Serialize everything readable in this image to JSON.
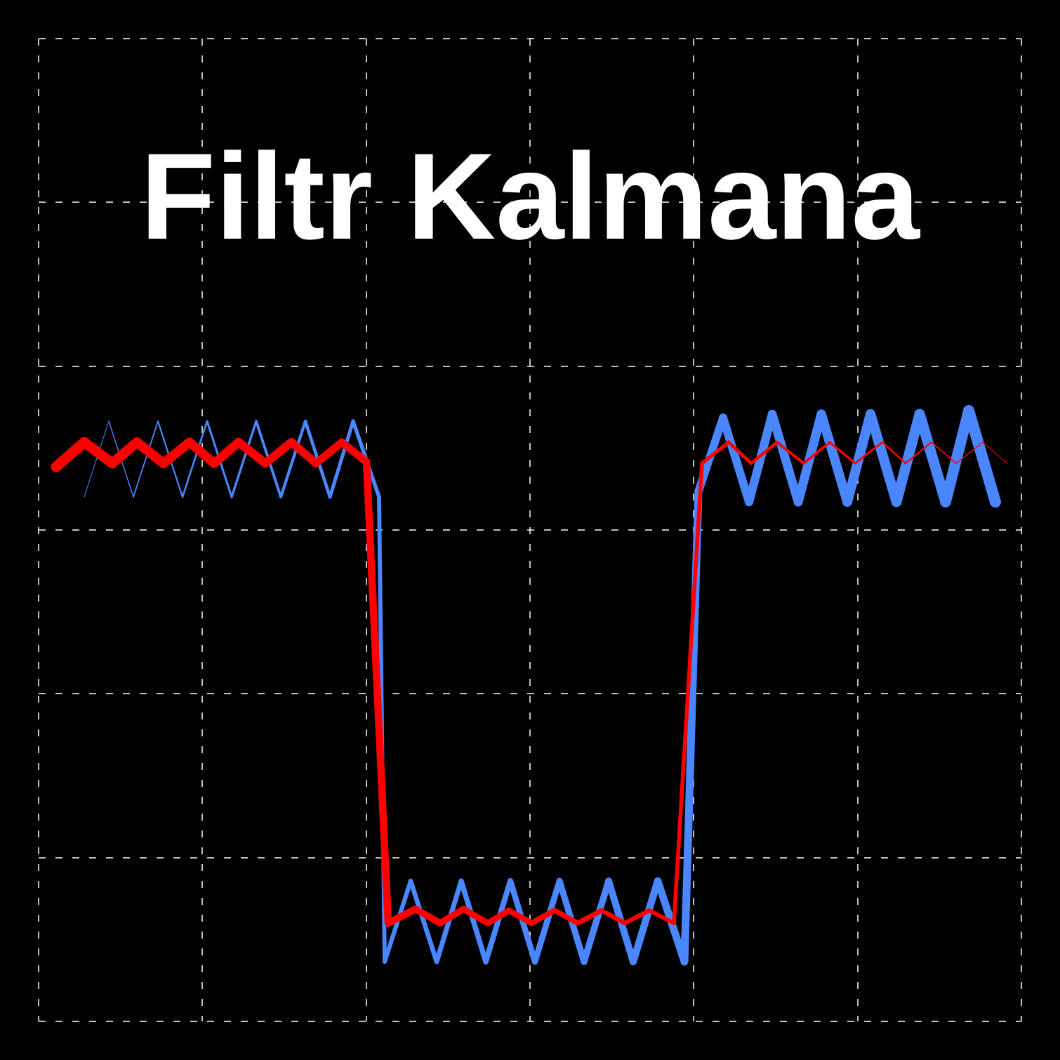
{
  "title": "Filtr Kalmana"
}
